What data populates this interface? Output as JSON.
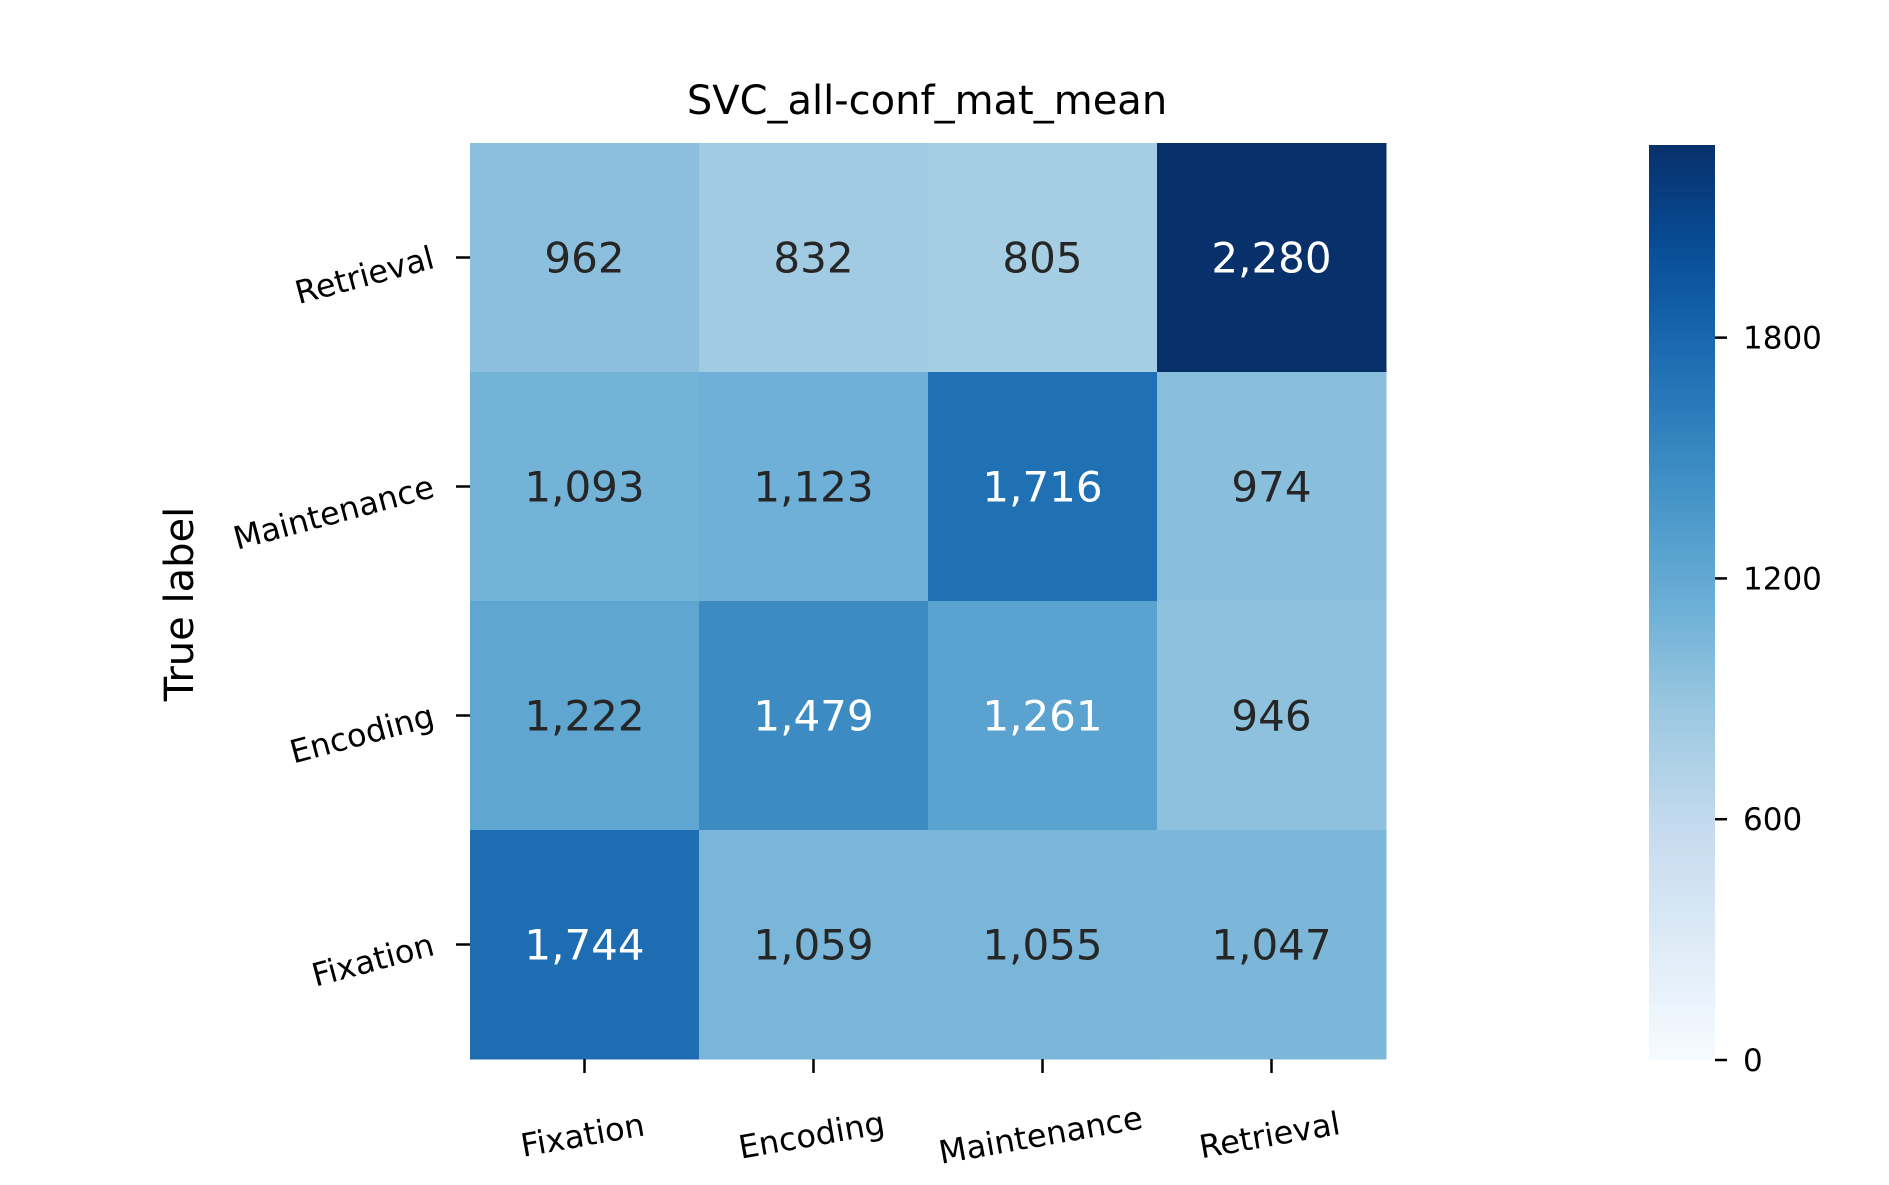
{
  "chart_data": {
    "type": "heatmap",
    "title": "SVC_all-conf_mat_mean",
    "xlabel": "",
    "ylabel": "True label",
    "x_categories": [
      "Fixation",
      "Encoding",
      "Maintenance",
      "Retrieval"
    ],
    "y_categories": [
      "Retrieval",
      "Maintenance",
      "Encoding",
      "Fixation"
    ],
    "matrix": [
      [
        962,
        832,
        805,
        2280
      ],
      [
        1093,
        1123,
        1716,
        974
      ],
      [
        1222,
        1479,
        1261,
        946
      ],
      [
        1744,
        1059,
        1055,
        1047
      ]
    ],
    "cell_labels": [
      [
        "962",
        "832",
        "805",
        "2,280"
      ],
      [
        "1,093",
        "1,123",
        "1,716",
        "974"
      ],
      [
        "1,222",
        "1,479",
        "1,261",
        "946"
      ],
      [
        "1,744",
        "1,059",
        "1,055",
        "1,047"
      ]
    ],
    "colormap": "Blues",
    "colorbar": {
      "range": [
        0,
        2280
      ],
      "ticks": [
        0,
        600,
        1200,
        1800
      ],
      "tick_labels": [
        "0",
        "600",
        "1200",
        "1800"
      ]
    },
    "colors": {
      "low": "#f7fbff",
      "high": "#08306b",
      "text_dark": "#262626",
      "text_light": "#ffffff"
    }
  }
}
